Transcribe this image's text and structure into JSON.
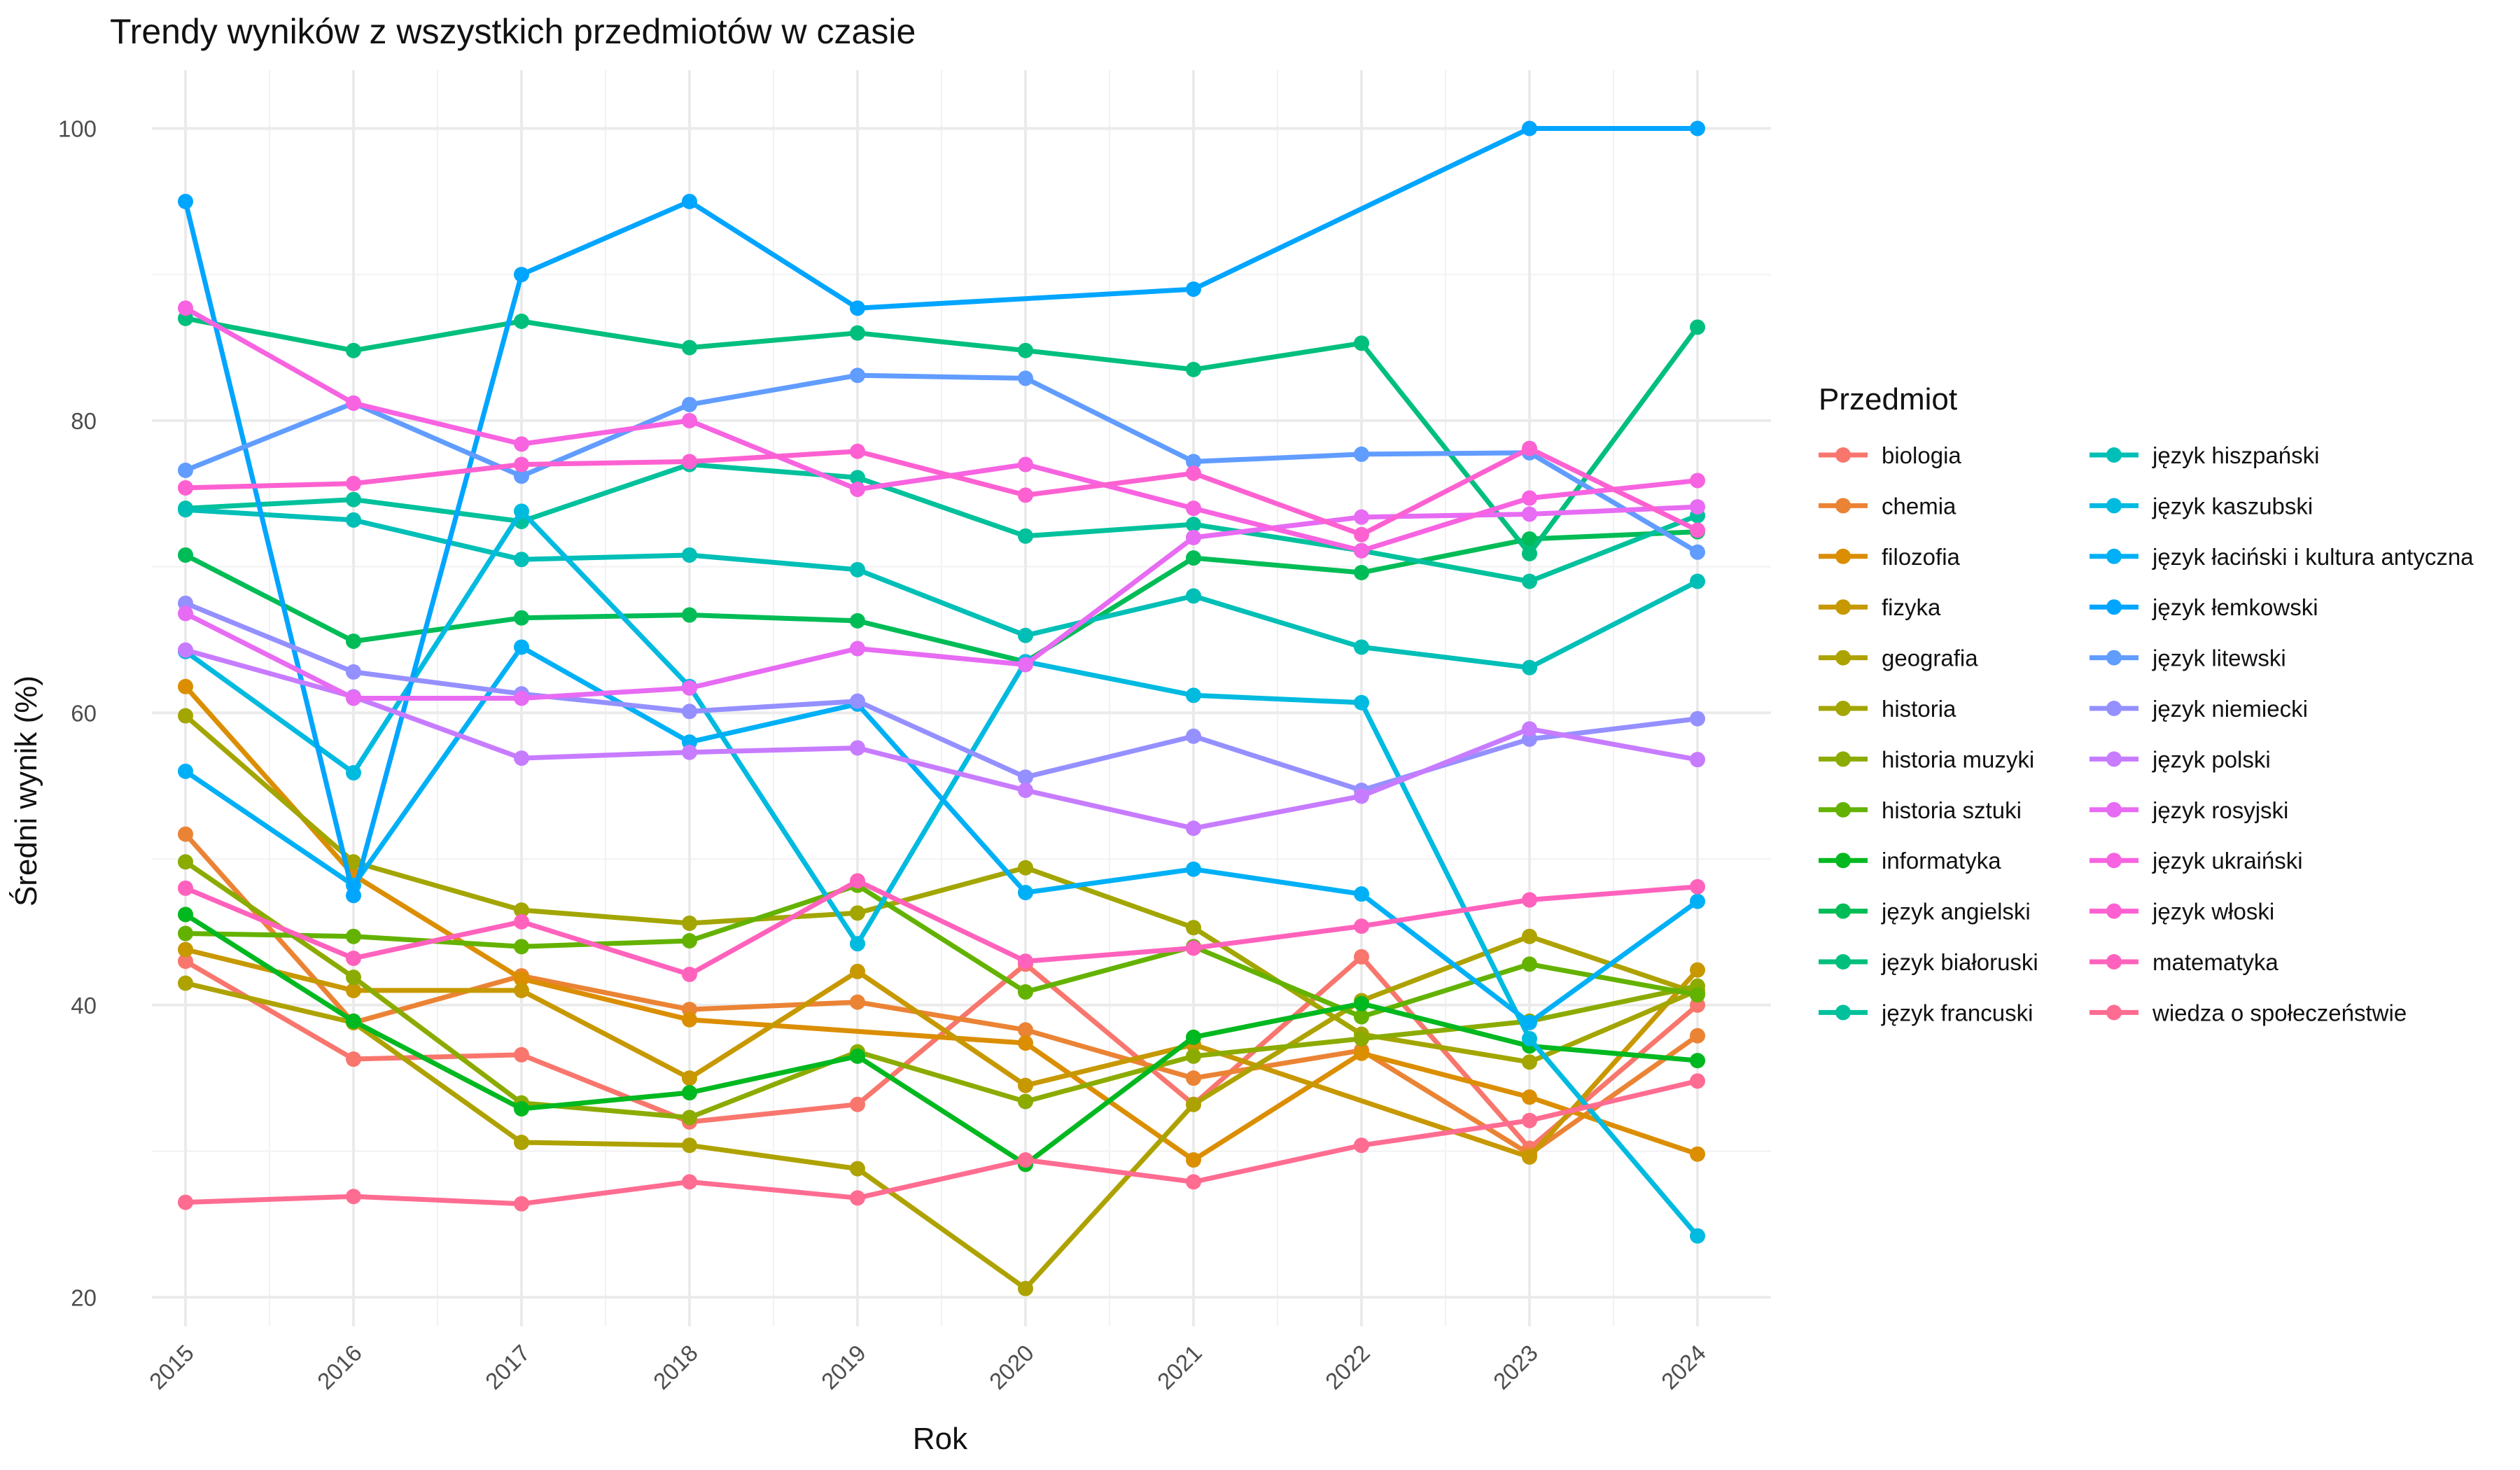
{
  "chart_data": {
    "type": "line",
    "title": "Trendy wyników z wszystkich przedmiotów w czasie",
    "xlabel": "Rok",
    "ylabel": "Średni wynik (%)",
    "legend_title": "Przedmiot",
    "legend_position": "right",
    "grid": true,
    "x": [
      "2015",
      "2016",
      "2017",
      "2018",
      "2019",
      "2020",
      "2021",
      "2022",
      "2023",
      "2024"
    ],
    "ylim": [
      18,
      104
    ],
    "yticks": [
      20,
      40,
      60,
      80,
      100
    ],
    "series": [
      {
        "name": "biologia",
        "color": "#F8766D",
        "values": [
          43.0,
          36.3,
          36.6,
          32.0,
          33.2,
          42.8,
          33.2,
          43.3,
          30.2,
          40.0
        ]
      },
      {
        "name": "chemia",
        "color": "#EB8335",
        "values": [
          51.7,
          38.8,
          42.0,
          39.7,
          40.2,
          38.3,
          35.0,
          36.9,
          29.8,
          37.9
        ]
      },
      {
        "name": "filozofia",
        "color": "#DB8E00",
        "values": [
          61.8,
          48.9,
          41.8,
          39.0,
          null,
          37.4,
          29.4,
          36.7,
          33.7,
          29.8
        ]
      },
      {
        "name": "fizyka",
        "color": "#C79800",
        "values": [
          43.8,
          41.0,
          41.0,
          35.0,
          42.3,
          34.5,
          37.3,
          null,
          29.6,
          42.4
        ]
      },
      {
        "name": "geografia",
        "color": "#AEA200",
        "values": [
          41.5,
          38.8,
          30.6,
          30.4,
          28.8,
          20.6,
          33.2,
          40.3,
          44.7,
          40.8
        ]
      },
      {
        "name": "historia",
        "color": "#A3A500",
        "values": [
          59.8,
          49.8,
          46.5,
          45.6,
          46.3,
          49.4,
          45.3,
          38.0,
          36.1,
          41.0
        ]
      },
      {
        "name": "historia muzyki",
        "color": "#8BAB00",
        "values": [
          49.8,
          41.9,
          33.3,
          32.3,
          36.8,
          33.4,
          36.5,
          37.7,
          38.9,
          41.3
        ]
      },
      {
        "name": "historia sztuki",
        "color": "#64B200",
        "values": [
          44.9,
          44.7,
          44.0,
          44.4,
          48.2,
          40.9,
          44.0,
          39.2,
          42.8,
          40.7
        ]
      },
      {
        "name": "informatyka",
        "color": "#00B81F",
        "values": [
          46.2,
          38.9,
          32.9,
          34.0,
          36.5,
          29.1,
          37.8,
          40.1,
          37.2,
          36.2
        ]
      },
      {
        "name": "język angielski",
        "color": "#00BC56",
        "values": [
          70.8,
          64.9,
          66.5,
          66.7,
          66.3,
          63.5,
          70.6,
          69.6,
          71.9,
          72.4
        ]
      },
      {
        "name": "język białoruski",
        "color": "#00BF7D",
        "values": [
          87.0,
          84.8,
          86.8,
          85.0,
          86.0,
          84.8,
          83.5,
          85.3,
          70.9,
          86.4
        ]
      },
      {
        "name": "język francuski",
        "color": "#00C19C",
        "values": [
          74.0,
          74.6,
          73.1,
          77.0,
          76.1,
          72.1,
          72.9,
          71.1,
          69.0,
          73.5
        ]
      },
      {
        "name": "język hiszpański",
        "color": "#00BFB7",
        "values": [
          73.9,
          73.2,
          70.5,
          70.8,
          69.8,
          65.3,
          68.0,
          64.5,
          63.1,
          69.0
        ]
      },
      {
        "name": "język kaszubski",
        "color": "#00BAE0",
        "values": [
          64.2,
          55.9,
          73.8,
          61.8,
          44.2,
          63.5,
          61.2,
          60.7,
          37.7,
          24.2
        ]
      },
      {
        "name": "język łaciński i kultura antyczna",
        "color": "#00B0F6",
        "values": [
          56.0,
          48.2,
          64.5,
          58.0,
          60.6,
          47.7,
          49.3,
          47.6,
          38.8,
          47.1
        ]
      },
      {
        "name": "język łemkowski",
        "color": "#00A5FF",
        "values": [
          95.0,
          47.5,
          90.0,
          95.0,
          87.7,
          null,
          89.0,
          null,
          100.0,
          100.0
        ]
      },
      {
        "name": "język litewski",
        "color": "#619CFF",
        "values": [
          76.6,
          81.2,
          76.2,
          81.1,
          83.1,
          82.9,
          77.2,
          77.7,
          77.8,
          71.0
        ]
      },
      {
        "name": "język niemiecki",
        "color": "#9590FF",
        "values": [
          67.5,
          62.8,
          61.3,
          60.1,
          60.8,
          55.6,
          58.4,
          54.7,
          58.2,
          59.6
        ]
      },
      {
        "name": "język polski",
        "color": "#C77CFF",
        "values": [
          64.3,
          61.1,
          56.9,
          57.3,
          57.6,
          54.7,
          52.1,
          54.3,
          58.9,
          56.8
        ]
      },
      {
        "name": "język rosyjski",
        "color": "#E76BF3",
        "values": [
          66.8,
          61.0,
          61.0,
          61.7,
          64.4,
          63.3,
          72.0,
          73.4,
          73.6,
          74.1
        ]
      },
      {
        "name": "język ukraiński",
        "color": "#F763E0",
        "values": [
          87.7,
          81.2,
          78.4,
          80.0,
          75.3,
          77.0,
          74.0,
          71.1,
          74.7,
          75.9
        ]
      },
      {
        "name": "język włoski",
        "color": "#FD61D1",
        "values": [
          75.4,
          75.7,
          77.0,
          77.2,
          77.9,
          74.9,
          76.4,
          72.2,
          78.1,
          72.5
        ]
      },
      {
        "name": "matematyka",
        "color": "#FF62BC",
        "values": [
          48.0,
          43.2,
          45.7,
          42.1,
          48.5,
          43.0,
          43.9,
          45.4,
          47.2,
          48.1
        ]
      },
      {
        "name": "wiedza o społeczeństwie",
        "color": "#FF6C91",
        "values": [
          26.5,
          26.9,
          26.4,
          27.9,
          26.8,
          29.4,
          27.9,
          30.4,
          32.1,
          34.8
        ]
      }
    ]
  }
}
